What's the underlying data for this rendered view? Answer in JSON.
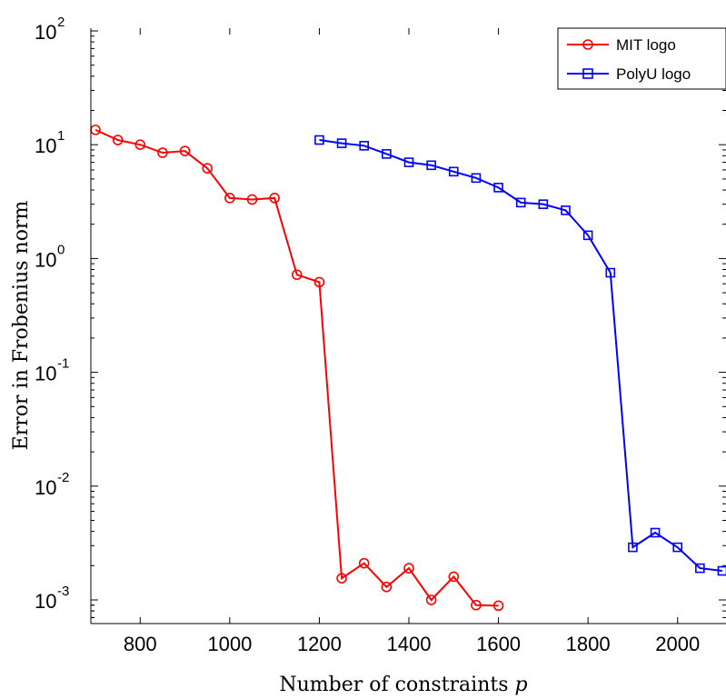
{
  "chart_data": {
    "type": "line",
    "title": "",
    "xlabel": "Number of constraints",
    "xlabel_symbol": "p",
    "ylabel": "Error in Frobenius norm",
    "xlim": [
      690,
      2100
    ],
    "ylim": [
      0.0005,
      100
    ],
    "yscale": "log",
    "grid": false,
    "legend_position": "top-right",
    "x_ticks": [
      800,
      1000,
      1200,
      1400,
      1600,
      1800,
      2000
    ],
    "y_ticks": [
      {
        "base": "10",
        "exp": "2",
        "value": 100
      },
      {
        "base": "10",
        "exp": "1",
        "value": 10
      },
      {
        "base": "10",
        "exp": "0",
        "value": 1
      },
      {
        "base": "10",
        "exp": "-1",
        "value": 0.1
      },
      {
        "base": "10",
        "exp": "-2",
        "value": 0.01
      },
      {
        "base": "10",
        "exp": "-3",
        "value": 0.001
      }
    ],
    "series": [
      {
        "name": "MIT logo",
        "color": "#ff0000",
        "marker": "circle",
        "x": [
          700,
          750,
          800,
          850,
          900,
          950,
          1000,
          1050,
          1100,
          1150,
          1200,
          1250,
          1300,
          1350,
          1400,
          1450,
          1500,
          1550,
          1600
        ],
        "y": [
          13.5,
          11.0,
          10.0,
          8.5,
          8.8,
          6.2,
          3.4,
          3.3,
          3.4,
          0.72,
          0.62,
          0.00155,
          0.0021,
          0.0013,
          0.0019,
          0.001,
          0.0016,
          0.0009,
          0.00089
        ]
      },
      {
        "name": "PolyU logo",
        "color": "#0000ff",
        "marker": "square",
        "x": [
          1200,
          1250,
          1300,
          1350,
          1400,
          1450,
          1500,
          1550,
          1600,
          1650,
          1700,
          1750,
          1800,
          1850,
          1900,
          1950,
          2000,
          2050,
          2100
        ],
        "y": [
          11.0,
          10.3,
          9.8,
          8.3,
          7.0,
          6.6,
          5.8,
          5.1,
          4.2,
          3.1,
          3.0,
          2.65,
          1.6,
          0.75,
          0.0029,
          0.0039,
          0.0029,
          0.0019,
          0.0018
        ]
      }
    ]
  }
}
